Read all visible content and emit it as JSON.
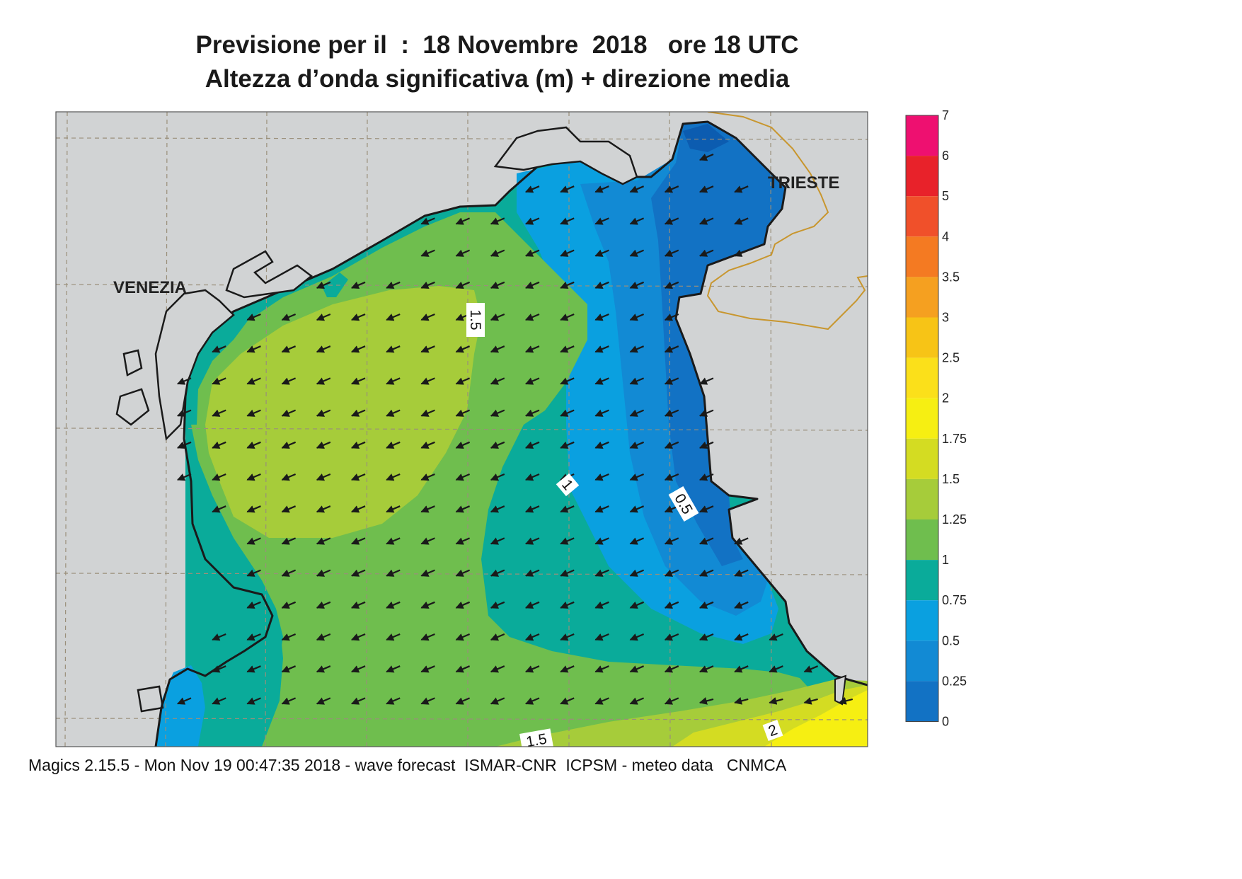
{
  "title": {
    "line1": "Previsione per il  :  18 Novembre  2018   ore 18 UTC",
    "line2": "Altezza d’onda significativa (m) + direzione media"
  },
  "cities": {
    "venezia": "VENEZIA",
    "trieste": "TRIESTE"
  },
  "contour_labels": [
    "1.5",
    "1",
    "0.5",
    "1.5",
    "2"
  ],
  "colorbar": {
    "levels": [
      "7",
      "6",
      "5",
      "4",
      "3.5",
      "3",
      "2.5",
      "2",
      "1.75",
      "1.5",
      "1.25",
      "1",
      "0.75",
      "0.5",
      "0.25",
      "0"
    ],
    "colors": [
      "#ee1070",
      "#e8222a",
      "#f0502a",
      "#f47a22",
      "#f5a020",
      "#f7c416",
      "#fbe01a",
      "#f6ef12",
      "#d4dc22",
      "#a6cc3a",
      "#6fbe4e",
      "#0aab9a",
      "#0aa0e0",
      "#128ad4",
      "#1272c4",
      "#0c5cb0"
    ]
  },
  "colors": {
    "land": "#d1d3d4",
    "coast": "#1a1a1a",
    "border": "#c8962e",
    "arrow": "#1a1a1a"
  },
  "footer": "Magics 2.15.5 - Mon Nov 19 00:47:35 2018 - wave forecast  ISMAR-CNR  ICPSM - meteo data   CNMCA"
}
